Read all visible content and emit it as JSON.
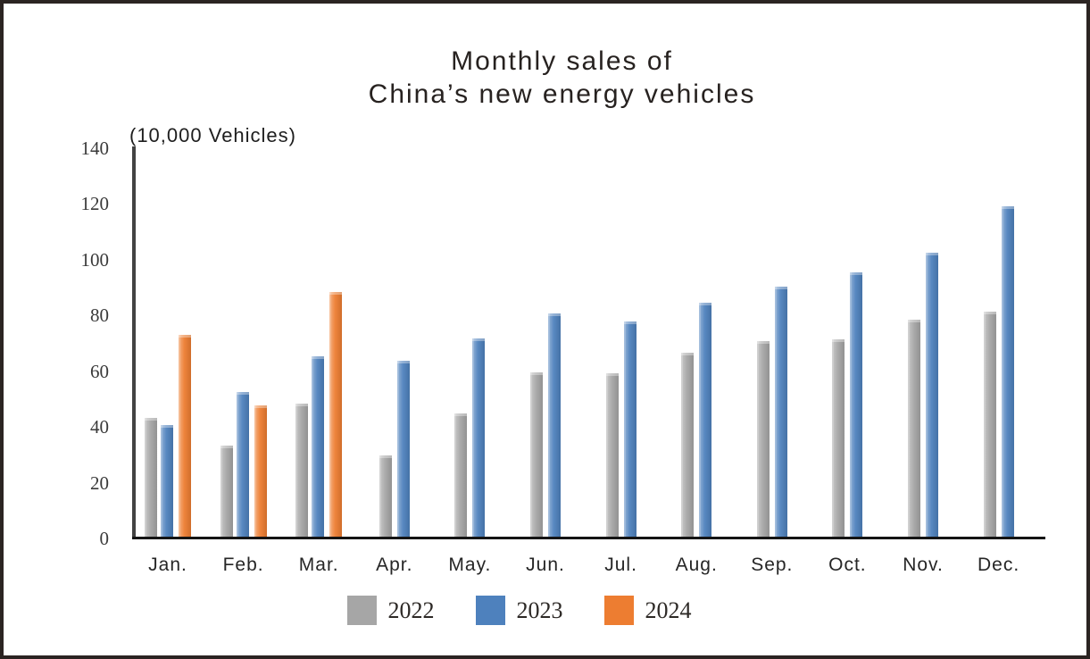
{
  "page": {
    "title_line1": "Monthly sales of",
    "title_line2": "China’s new energy vehicles",
    "unit_label": "(10,000 Vehicles)"
  },
  "chart_data": {
    "type": "bar",
    "title": "Monthly sales of China’s new energy vehicles",
    "ylabel": "(10,000 Vehicles)",
    "categories": [
      "Jan.",
      "Feb.",
      "Mar.",
      "Apr.",
      "May.",
      "Jun.",
      "Jul.",
      "Aug.",
      "Sep.",
      "Oct.",
      "Nov.",
      "Dec."
    ],
    "yticks": [
      0,
      20,
      40,
      60,
      80,
      100,
      120,
      140
    ],
    "ylim": [
      0,
      140
    ],
    "grid": false,
    "legend_position": "bottom",
    "series": [
      {
        "name": "2022",
        "color": "#a6a6a6",
        "values": [
          43.1,
          33.4,
          48.4,
          29.9,
          44.7,
          59.6,
          59.3,
          66.6,
          70.8,
          71.4,
          78.6,
          81.4
        ]
      },
      {
        "name": "2023",
        "color": "#4e81bd",
        "values": [
          40.8,
          52.5,
          65.3,
          63.6,
          71.7,
          80.6,
          78.0,
          84.6,
          90.4,
          95.6,
          102.6,
          119.1
        ]
      },
      {
        "name": "2024",
        "color": "#ed7d31",
        "values": [
          72.9,
          47.7,
          88.3,
          null,
          null,
          null,
          null,
          null,
          null,
          null,
          null,
          null
        ]
      }
    ]
  }
}
